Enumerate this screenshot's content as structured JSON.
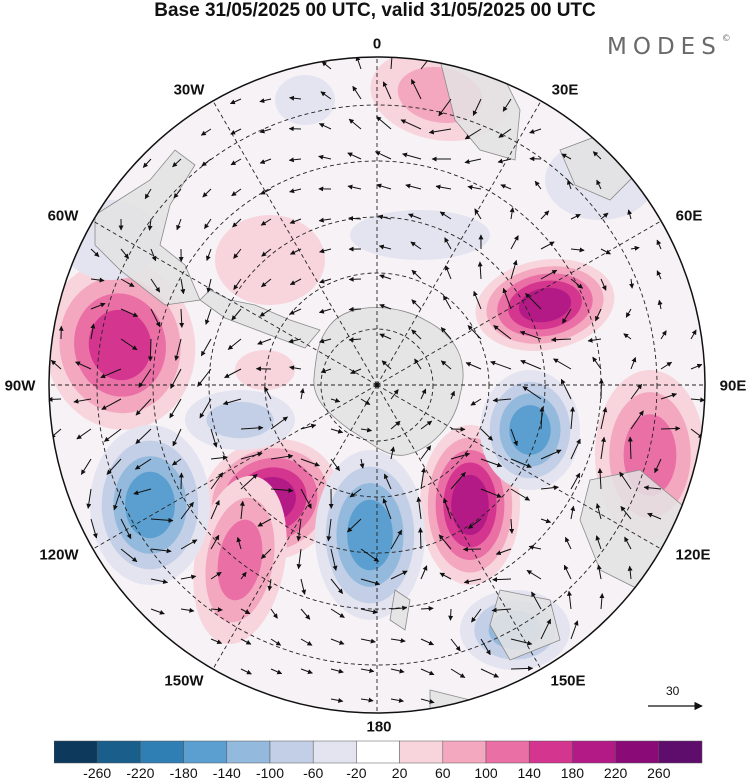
{
  "title": "Base 31/05/2025 00 UTC, valid 31/05/2025 00 UTC",
  "brand": "MODES",
  "brand_mark": "©",
  "longitude_labels": {
    "lon_0": "0",
    "lon_30e": "30E",
    "lon_60e": "60E",
    "lon_90e": "90E",
    "lon_120e": "120E",
    "lon_150e": "150E",
    "lon_180": "180",
    "lon_150w": "150W",
    "lon_120w": "120W",
    "lon_90w": "90W",
    "lon_60w": "60W",
    "lon_30w": "30W"
  },
  "reference_vector": {
    "label": "30"
  },
  "colorbar": {
    "labels": [
      "-260",
      "-220",
      "-180",
      "-140",
      "-100",
      "-60",
      "-20",
      "20",
      "60",
      "100",
      "140",
      "180",
      "220",
      "260"
    ],
    "colors": [
      "#0d3a5c",
      "#1a5f8c",
      "#2f7fb5",
      "#5a9fcf",
      "#93b9dc",
      "#c3cfe6",
      "#e4e4f1",
      "#ffffff",
      "#f8d4dc",
      "#f3a8c0",
      "#ea6fa5",
      "#d3358f",
      "#b31a86",
      "#8a0a78",
      "#5e0d6c"
    ]
  },
  "colors": {
    "land": "#e3e3e3",
    "graticule": "#222222"
  }
}
